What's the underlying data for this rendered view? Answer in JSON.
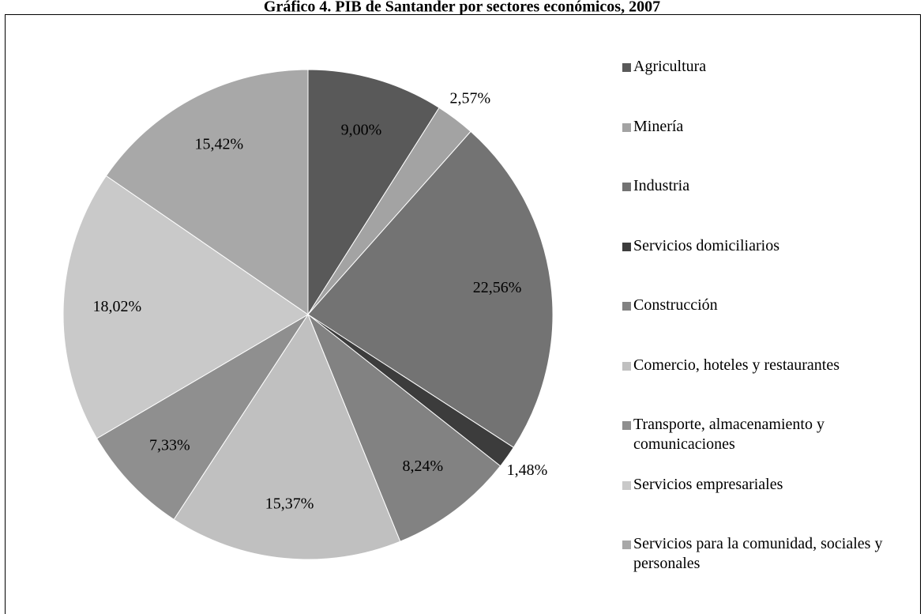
{
  "chart_data": {
    "type": "pie",
    "title": "Gráfico 4. PIB de Santander por sectores económicos, 2007",
    "categories": [
      "Agricultura",
      "Minería",
      "Industria",
      "Servicios domiciliarios",
      "Construcción",
      "Comercio, hoteles y restaurantes",
      "Transporte, almacenamiento y comunicaciones",
      "Servicios empresariales",
      "Servicios para la comunidad, sociales y personales"
    ],
    "values": [
      9.0,
      2.57,
      22.56,
      1.48,
      8.24,
      15.37,
      7.33,
      18.02,
      15.42
    ],
    "value_labels": [
      "9,00%",
      "2,57%",
      "22,56%",
      "1,48%",
      "8,24%",
      "15,37%",
      "7,33%",
      "18,02%",
      "15,42%"
    ],
    "colors": [
      "#595959",
      "#a3a3a3",
      "#737373",
      "#3c3c3c",
      "#828282",
      "#c0c0c0",
      "#8f8f8f",
      "#c9c9c9",
      "#a8a8a8"
    ],
    "legend": "right"
  }
}
